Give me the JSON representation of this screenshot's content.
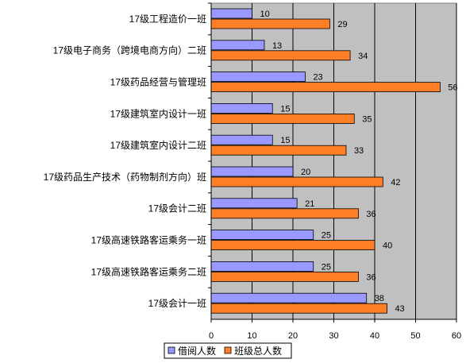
{
  "chart_data": {
    "type": "bar",
    "orientation": "horizontal",
    "categories": [
      "17级工程造价一班",
      "17级电子商务（跨境电商方向）二班",
      "17级药品经营与管理班",
      "17级建筑室内设计一班",
      "17级建筑室内设计二班",
      "17级药品生产技术（药物制剂方向）班",
      "17级会计二班",
      "17级高速铁路客运乘务一班",
      "17级高速铁路客运乘务二班",
      "17级会计一班"
    ],
    "series": [
      {
        "name": "借阅人数",
        "values": [
          10,
          13,
          23,
          15,
          15,
          20,
          21,
          25,
          25,
          38
        ],
        "color": "#9999ff"
      },
      {
        "name": "班级总人数",
        "values": [
          29,
          34,
          56,
          35,
          33,
          42,
          36,
          40,
          36,
          43
        ],
        "color": "#ff7f27"
      }
    ],
    "xlim": [
      0,
      60
    ],
    "x_ticks": [
      "0",
      "10",
      "20",
      "30",
      "40",
      "50",
      "60"
    ],
    "grid": true,
    "plot_background": "#c0c0c0",
    "legend_position": "bottom"
  }
}
